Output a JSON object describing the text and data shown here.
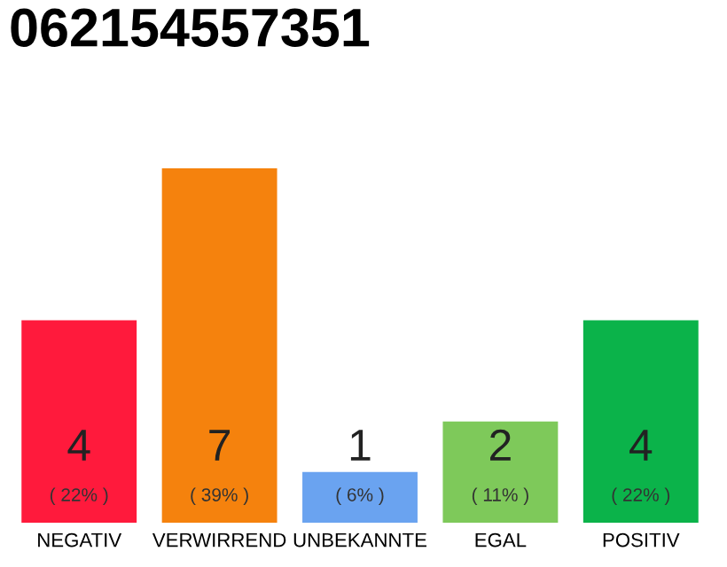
{
  "chart_data": {
    "type": "bar",
    "title": "062154557351",
    "categories": [
      "NEGATIV",
      "VERWIRREND",
      "UNBEKANNTE",
      "EGAL",
      "POSITIV"
    ],
    "values": [
      4,
      7,
      1,
      2,
      4
    ],
    "colors": [
      "#ff1a3c",
      "#f5820d",
      "#6aa3f0",
      "#7ec95a",
      "#0bb34a"
    ],
    "value_labels": [
      "4\n( 22% )",
      "7\n( 39% )",
      "1\n( 6% )",
      "2\n( 11% )",
      "4\n( 22% )"
    ],
    "ylim": [
      0,
      7
    ],
    "tick_labels": "x",
    "grid": false,
    "legend": false
  }
}
